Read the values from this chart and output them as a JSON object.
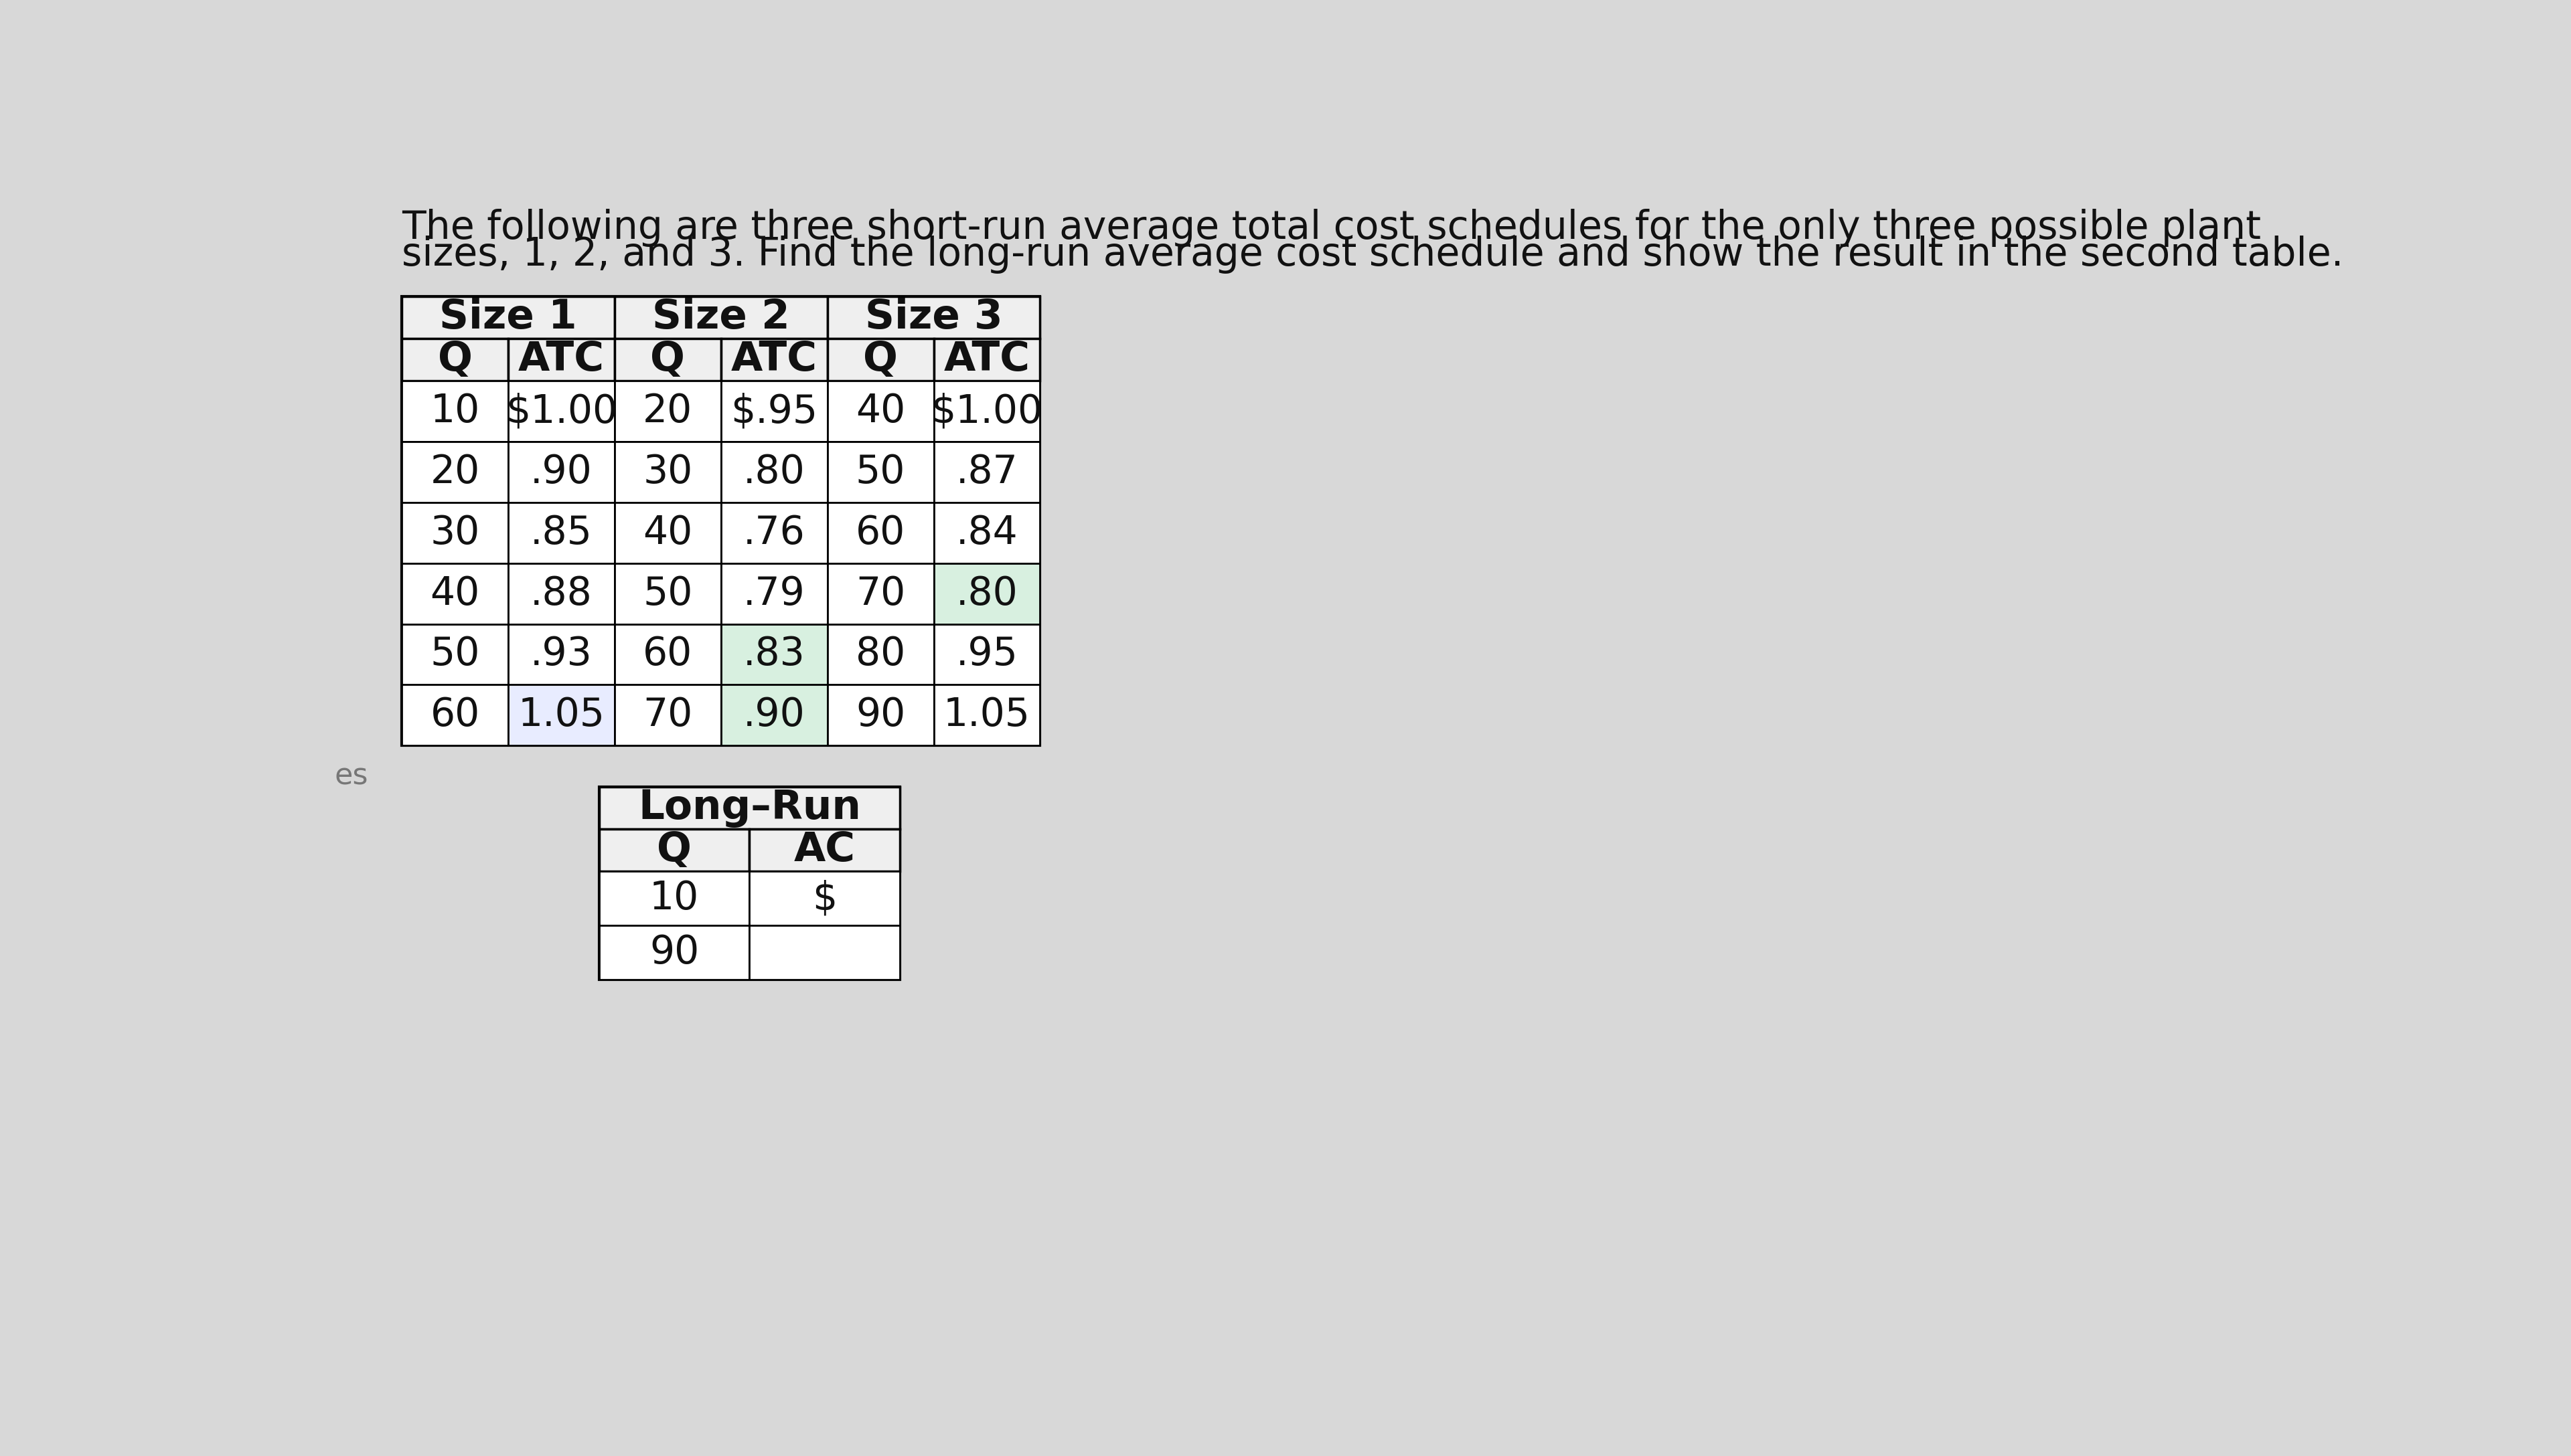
{
  "title_line1": "The following are three short-run average total cost schedules for the only three possible plant",
  "title_line2": "sizes, 1, 2, and 3. Find the long-run average cost schedule and show the result in the second table.",
  "size1_header": "Size 1",
  "size2_header": "Size 2",
  "size3_header": "Size 3",
  "longrun_header": "Long–Run",
  "col_q": "Q",
  "col_atc": "ATC",
  "col_ac": "AC",
  "size1_data": [
    [
      "10",
      "$1.00"
    ],
    [
      "20",
      ".90"
    ],
    [
      "30",
      ".85"
    ],
    [
      "40",
      ".88"
    ],
    [
      "50",
      ".93"
    ],
    [
      "60",
      "1.05"
    ]
  ],
  "size2_data": [
    [
      "20",
      "$.95"
    ],
    [
      "30",
      ".80"
    ],
    [
      "40",
      ".76"
    ],
    [
      "50",
      ".79"
    ],
    [
      "60",
      ".83"
    ],
    [
      "70",
      ".90"
    ]
  ],
  "size3_data": [
    [
      "40",
      "$1.00"
    ],
    [
      "50",
      ".87"
    ],
    [
      "60",
      ".84"
    ],
    [
      "70",
      ".80"
    ],
    [
      "80",
      ".95"
    ],
    [
      "90",
      "1.05"
    ]
  ],
  "longrun_q": [
    "10",
    "90"
  ],
  "longrun_ac": [
    "$",
    ""
  ],
  "bg_color": "#d8d8d8",
  "table_bg": "#efefef",
  "cell_bg_white": "#ffffff",
  "cell_highlight_blue": "#e8ecff",
  "cell_highlight_green": "#d8f0e0",
  "text_color": "#111111",
  "title_fontsize": 42,
  "header_fontsize": 44,
  "cell_fontsize": 42,
  "highlight_size1_row5_atc": true,
  "highlight_size2_rows": [
    4,
    5
  ],
  "highlight_size3_row3": true
}
